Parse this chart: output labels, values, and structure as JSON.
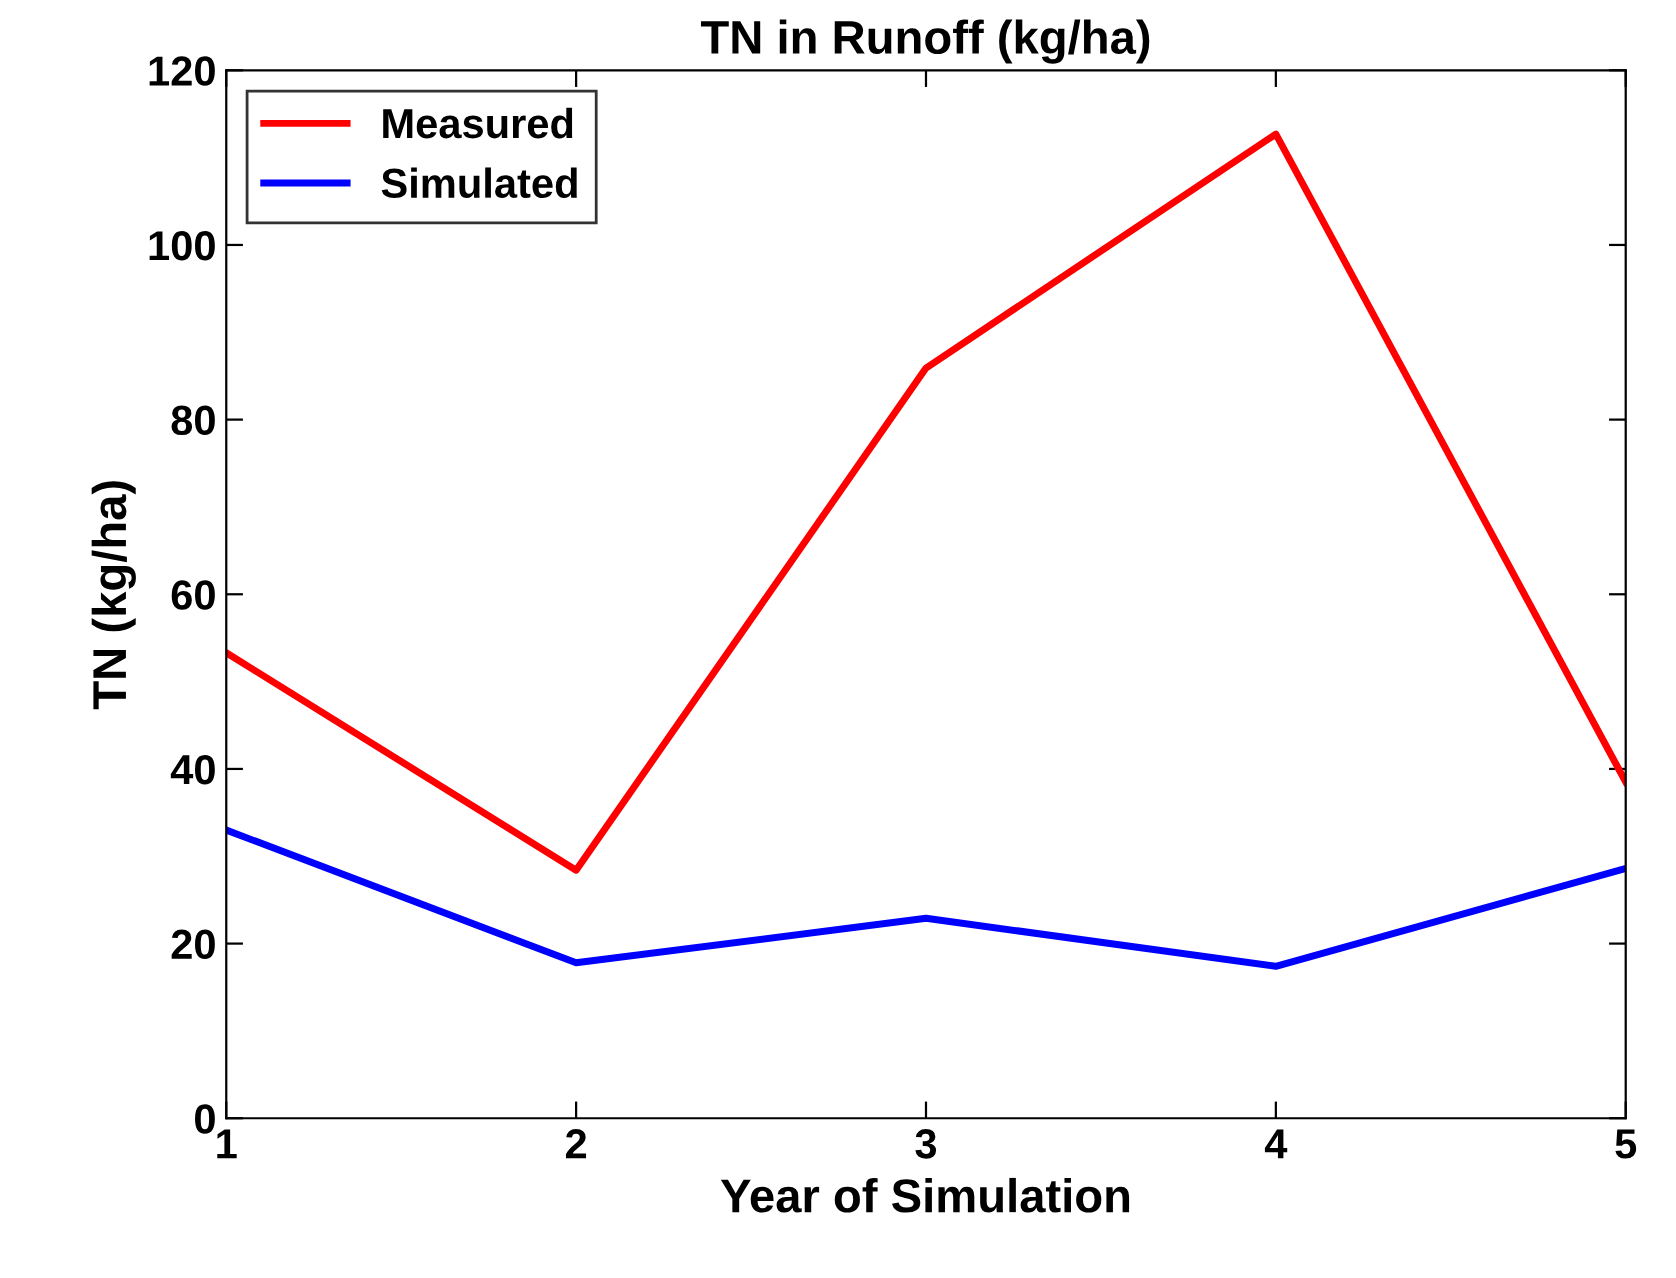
{
  "chart_data": {
    "type": "line",
    "title": "TN in Runoff (kg/ha)",
    "xlabel": "Year of Simulation",
    "ylabel": "TN (kg/ha)",
    "x": [
      1,
      2,
      3,
      4,
      5
    ],
    "series": [
      {
        "name": "Measured",
        "color": "#ff0000",
        "values": [
          53.3,
          28.4,
          85.9,
          112.7,
          38.5
        ]
      },
      {
        "name": "Simulated",
        "color": "#0000ff",
        "values": [
          33,
          17.8,
          22.9,
          17.4,
          28.6
        ]
      }
    ],
    "xlim": [
      1,
      5
    ],
    "xticks": [
      1,
      2,
      3,
      4,
      5
    ],
    "ylim": [
      0,
      120
    ],
    "yticks": [
      0,
      20,
      40,
      60,
      80,
      100,
      120
    ],
    "grid": false,
    "legend": "top left",
    "line_style": "solid"
  }
}
